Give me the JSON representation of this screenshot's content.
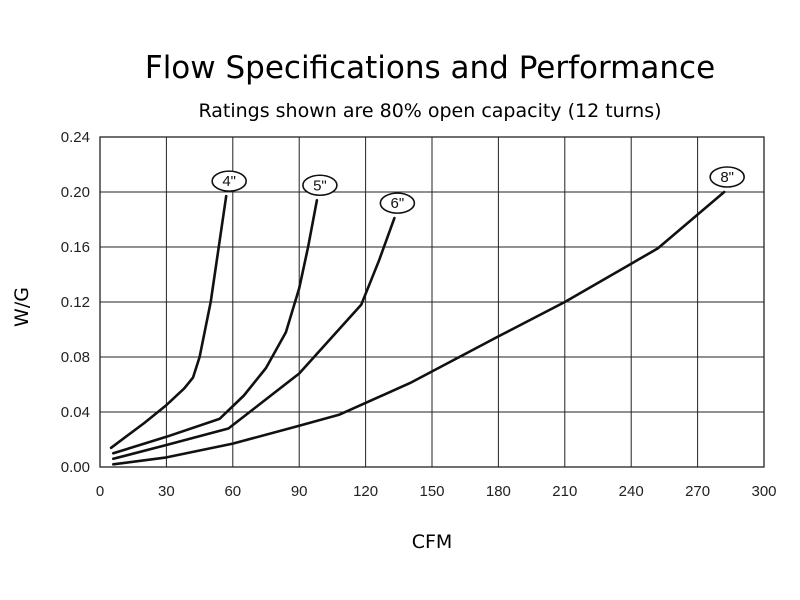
{
  "chart_data": {
    "type": "line",
    "title": "Flow Specifications and Performance",
    "subtitle": "Ratings shown are 80% open capacity (12 turns)",
    "xlabel": "CFM",
    "ylabel": "W/G",
    "xlim": [
      0,
      300
    ],
    "ylim": [
      0,
      0.24
    ],
    "xticks": [
      0,
      30,
      60,
      90,
      120,
      150,
      180,
      210,
      240,
      270,
      300
    ],
    "yticks": [
      0.0,
      0.04,
      0.08,
      0.12,
      0.16,
      0.2,
      0.24
    ],
    "xtick_labels": [
      "0",
      "30",
      "60",
      "90",
      "120",
      "150",
      "180",
      "210",
      "240",
      "270",
      "300"
    ],
    "ytick_labels": [
      "0.00",
      "0.04",
      "0.08",
      "0.12",
      "0.16",
      "0.20",
      "0.24"
    ],
    "grid": true,
    "series": [
      {
        "name": "4\"",
        "x": [
          5,
          20,
          30,
          38,
          42,
          45,
          50,
          57
        ],
        "y": [
          0.014,
          0.032,
          0.045,
          0.057,
          0.065,
          0.08,
          0.12,
          0.197
        ]
      },
      {
        "name": "5\"",
        "x": [
          6,
          30,
          54,
          65,
          75,
          84,
          90,
          94,
          98
        ],
        "y": [
          0.01,
          0.022,
          0.035,
          0.052,
          0.072,
          0.098,
          0.13,
          0.16,
          0.194
        ]
      },
      {
        "name": "6\"",
        "x": [
          6,
          30,
          58,
          90,
          118,
          126,
          133
        ],
        "y": [
          0.006,
          0.016,
          0.028,
          0.068,
          0.118,
          0.15,
          0.181
        ]
      },
      {
        "name": "8\"",
        "x": [
          6,
          30,
          60,
          90,
          108,
          140,
          180,
          210,
          252,
          282
        ],
        "y": [
          0.002,
          0.007,
          0.017,
          0.03,
          0.038,
          0.061,
          0.095,
          0.12,
          0.159,
          0.2
        ]
      }
    ]
  }
}
